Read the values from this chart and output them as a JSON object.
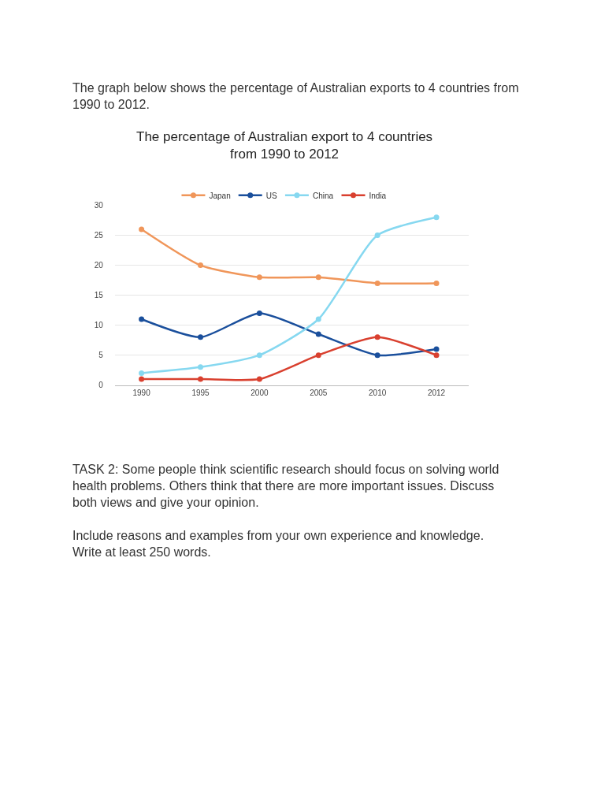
{
  "chart_data": {
    "type": "line",
    "title": "The percentage of Australian export to 4 countries\nfrom 1990 to 2012",
    "categories": [
      "1990",
      "1995",
      "2000",
      "2005",
      "2010",
      "2012"
    ],
    "series": [
      {
        "name": "Japan",
        "color": "#f0965a",
        "values": [
          26,
          20,
          18,
          18,
          17,
          17
        ]
      },
      {
        "name": "US",
        "color": "#1a4f9c",
        "values": [
          11,
          8,
          12,
          8.5,
          5,
          6
        ]
      },
      {
        "name": "China",
        "color": "#86d8f0",
        "values": [
          2,
          3,
          5,
          11,
          25,
          28
        ]
      },
      {
        "name": "India",
        "color": "#d9402f",
        "values": [
          1,
          1,
          1,
          5,
          8,
          5
        ]
      }
    ],
    "ylim": [
      0,
      30
    ],
    "yticks": [
      0,
      5,
      10,
      15,
      20,
      25,
      30
    ],
    "grid": "y",
    "legend": "top",
    "marker": "circle",
    "line_style": "solid",
    "annotations": [
      "The graph below shows the percentage of Australian exports to 4 countries from 1990 to 2012.",
      "TASK 2: Some people think scientific research should focus on solving world health problems. Others think that there are more important issues. Discuss both views and give your opinion.",
      "Include reasons and examples from your own experience and knowledge.\nWrite at least 250 words."
    ]
  }
}
